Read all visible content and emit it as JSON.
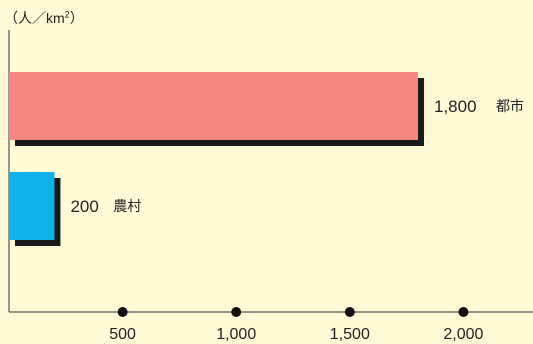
{
  "chart_data": {
    "type": "bar",
    "orientation": "horizontal",
    "unit_label": {
      "open": "（人／km",
      "sup": "2",
      "close": "）"
    },
    "categories": [
      "都市",
      "農村"
    ],
    "values": [
      1800,
      200
    ],
    "value_labels": [
      "1,800",
      "200"
    ],
    "colors": [
      "#f48880",
      "#10b0e8"
    ],
    "shadow_color": "#1a1a1a",
    "xlim": [
      0,
      2200
    ],
    "xticks": [
      500,
      1000,
      1500,
      2000
    ],
    "xtick_labels": [
      "500",
      "1,000",
      "1,500",
      "2,000"
    ],
    "background": "#fefad6"
  }
}
